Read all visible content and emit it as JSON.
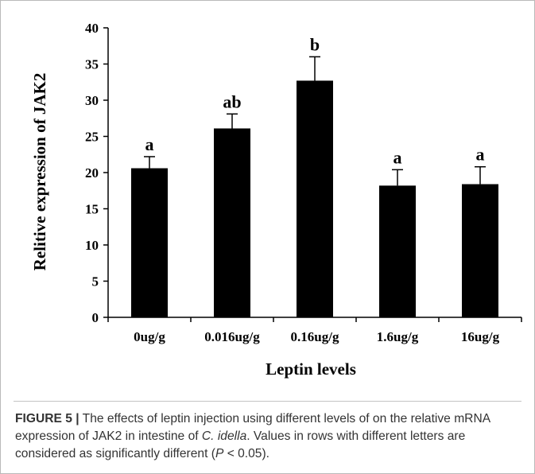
{
  "chart_data": {
    "type": "bar",
    "categories": [
      "0ug/g",
      "0.016ug/g",
      "0.16ug/g",
      "1.6ug/g",
      "16ug/g"
    ],
    "values": [
      20.6,
      26.1,
      32.7,
      18.2,
      18.4
    ],
    "errors": [
      1.6,
      2.0,
      3.3,
      2.2,
      2.4
    ],
    "significance_letters": [
      "a",
      "ab",
      "b",
      "a",
      "a"
    ],
    "xlabel": "Leptin levels",
    "ylabel": "Relitive expression  of  JAK2",
    "ylim": [
      0,
      40
    ],
    "yticks": [
      0,
      5,
      10,
      15,
      20,
      25,
      30,
      35,
      40
    ],
    "grid": false,
    "bar_color": "#000000"
  },
  "caption": {
    "label": "FIGURE 5 |",
    "text_1": " The effects of leptin injection using different levels of on the relative mRNA expression of JAK2 in intestine of ",
    "species": "C. idella",
    "text_2": ". Values in rows with different letters are considered as significantly different (",
    "p_symbol": "P",
    "text_3": " < 0.05)."
  }
}
